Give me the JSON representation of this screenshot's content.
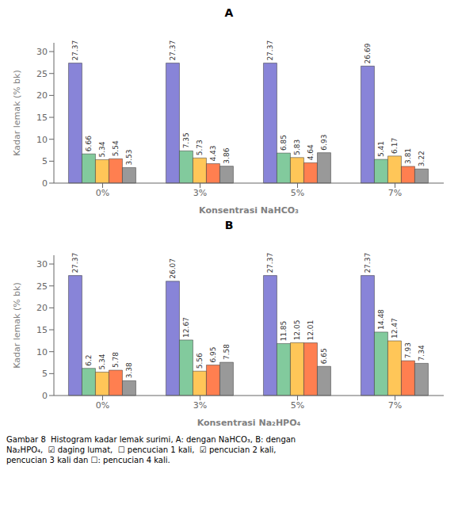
{
  "chart_data": [
    {
      "type": "bar",
      "title": "A",
      "xlabel": "Konsentrasi NaHCO₃",
      "ylabel": "Kadar lemak (% bk)",
      "categories": [
        "0%",
        "3%",
        "5%",
        "7%"
      ],
      "series": [
        {
          "name": "daging lumat",
          "color": "#8884d8",
          "values": [
            27.37,
            27.37,
            27.37,
            26.69
          ]
        },
        {
          "name": "pencucian 1 kali",
          "color": "#82ca9d",
          "values": [
            6.66,
            7.35,
            6.85,
            5.41
          ]
        },
        {
          "name": "pencucian 2 kali",
          "color": "#ffc658",
          "values": [
            5.34,
            5.73,
            5.83,
            6.17
          ]
        },
        {
          "name": "pencucian 3 kali",
          "color": "#ff7f50",
          "values": [
            5.54,
            4.43,
            4.64,
            3.81
          ]
        },
        {
          "name": "pencucian 4 kali",
          "color": "#999999",
          "values": [
            3.53,
            3.86,
            6.93,
            3.22
          ]
        }
      ],
      "ylim": [
        0,
        32
      ],
      "yticks": [
        0,
        5,
        10,
        15,
        20,
        25,
        30
      ],
      "data_labels": true,
      "grid": false
    },
    {
      "type": "bar",
      "title": "B",
      "xlabel": "Konsentrasi  Na₂HPO₄",
      "ylabel": "Kadar lemak (% bk)",
      "categories": [
        "0%",
        "3%",
        "5%",
        "7%"
      ],
      "series": [
        {
          "name": "daging lumat",
          "color": "#8884d8",
          "values": [
            27.37,
            26.07,
            27.37,
            27.37
          ]
        },
        {
          "name": "pencucian 1 kali",
          "color": "#82ca9d",
          "values": [
            6.2,
            12.67,
            11.85,
            14.48
          ]
        },
        {
          "name": "pencucian 2 kali",
          "color": "#ffc658",
          "values": [
            5.34,
            5.56,
            12.05,
            12.47
          ]
        },
        {
          "name": "pencucian 3 kali",
          "color": "#ff7f50",
          "values": [
            5.78,
            6.95,
            12.01,
            7.93
          ]
        },
        {
          "name": "pencucian 4 kali",
          "color": "#999999",
          "values": [
            3.38,
            7.58,
            6.65,
            7.34
          ]
        }
      ],
      "ylim": [
        0,
        32
      ],
      "yticks": [
        0,
        5,
        10,
        15,
        20,
        25,
        30
      ],
      "data_labels": true,
      "grid": false,
      "annotations": [
        "Gambar 8  Histogram kadar lemak surimi, A: dengan NaHCO₃, B: dengan\nNa₂HPO₄,  ☑ daging lumat,  ☐ pencucian 1 kali,  ☑ pencucian 2 kali,\npencucian 3 kali dan ☐: pencucian 4 kali."
      ]
    }
  ]
}
